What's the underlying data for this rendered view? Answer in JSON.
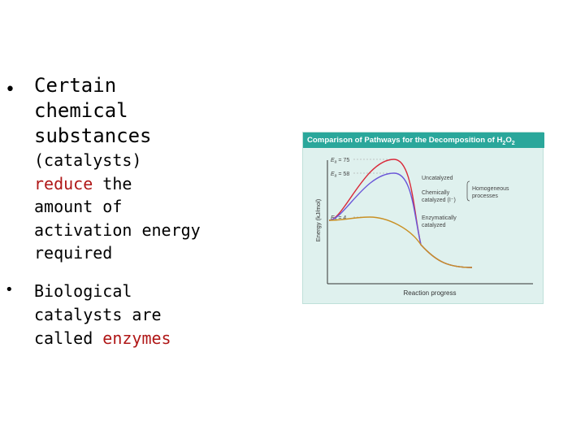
{
  "bullets": {
    "b1": {
      "line1": "Certain",
      "line2": "chemical",
      "line3": "substances",
      "line4": "(catalysts)",
      "line5_red": "reduce",
      "line5_rest": " the",
      "line6": "amount of",
      "line7": "activation energy",
      "line8": "required"
    },
    "b2": {
      "line1": "Biological",
      "line2": "catalysts are",
      "line3_plain": "called ",
      "line3_red": "enzymes"
    }
  },
  "figure": {
    "title": "Comparison of Pathways for the Decomposition of H",
    "title_sub": "2",
    "title_mid": "O",
    "title_sub2": "2"
  },
  "chart_data": {
    "type": "line",
    "xlabel": "Reaction progress",
    "ylabel": "Energy (kJ/mol)",
    "ea_labels": [
      {
        "prefix": "E",
        "sub": "a",
        "text": " = 75",
        "value": 75
      },
      {
        "prefix": "E",
        "sub": "a",
        "text": " = 58",
        "value": 58
      },
      {
        "prefix": "E",
        "sub": "a",
        "text": " = 4",
        "value": 4
      }
    ],
    "series": [
      {
        "name": "Uncatalyzed",
        "color": "#d92a3a",
        "barrier": 75
      },
      {
        "name": "Chemically catalyzed (I⁻)",
        "color": "#6a56d8",
        "barrier": 58
      },
      {
        "name": "Enzymatically catalyzed",
        "color": "#c99023",
        "barrier": 4
      }
    ],
    "legend_labels": [
      {
        "line1": "Uncatalyzed",
        "line2": ""
      },
      {
        "line1": "Chemically",
        "line2": "catalyzed (I⁻)"
      },
      {
        "line1": "Enzymatically",
        "line2": "catalyzed"
      }
    ],
    "group_label": {
      "line1": "Homogeneous",
      "line2": "processes"
    }
  }
}
